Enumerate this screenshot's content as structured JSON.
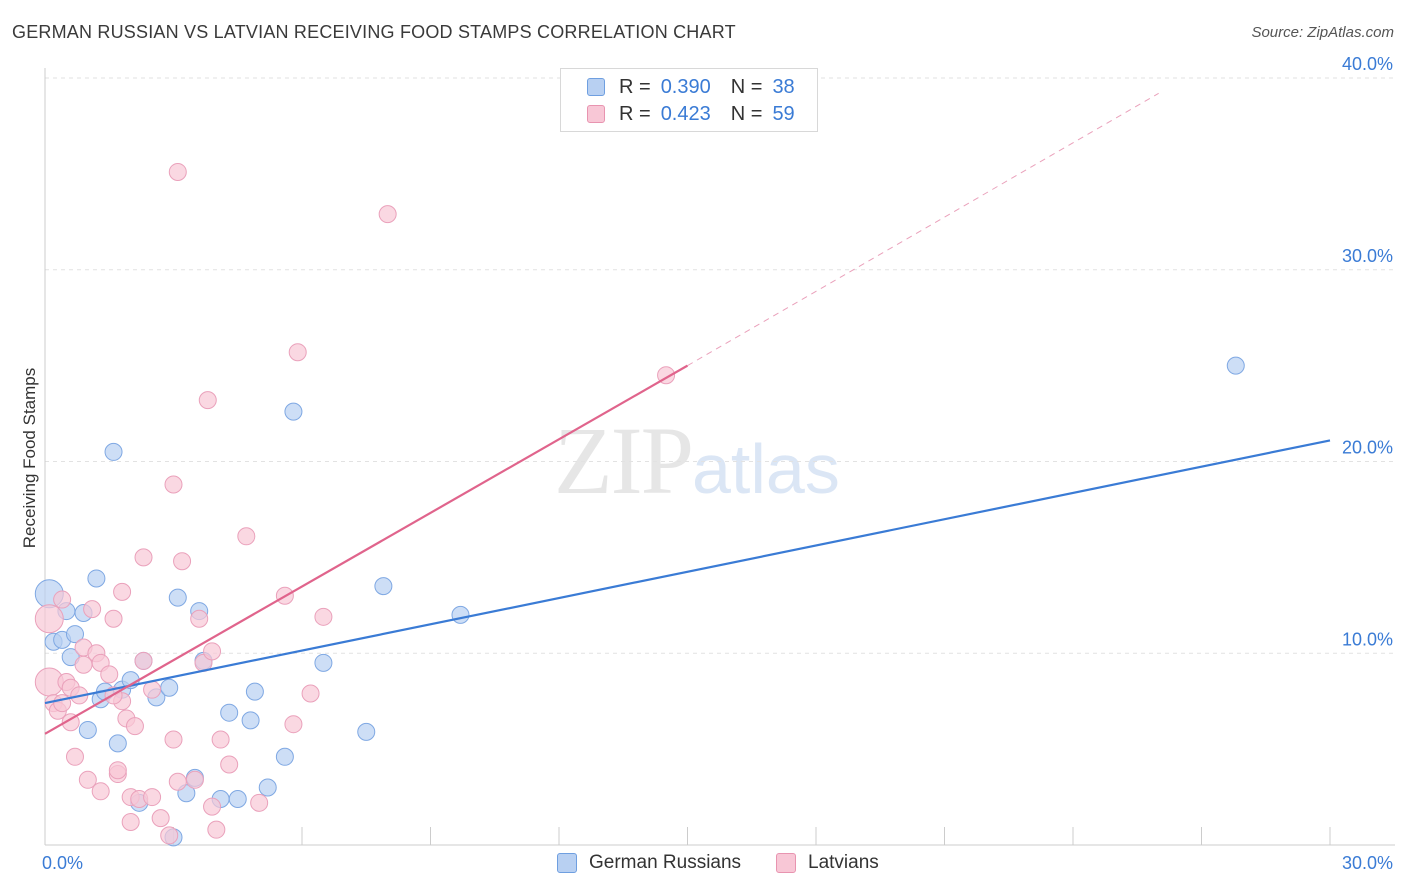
{
  "title": "GERMAN RUSSIAN VS LATVIAN RECEIVING FOOD STAMPS CORRELATION CHART",
  "source": "Source: ZipAtlas.com",
  "watermark": {
    "zip": "ZIP",
    "atlas": "atlas"
  },
  "legend": {
    "r_label": "R =",
    "n_label": "N =",
    "rows": [
      {
        "r": "0.390",
        "n": "38",
        "fill": "#b8d0f2",
        "stroke": "#6f9fe0"
      },
      {
        "r": "0.423",
        "n": "59",
        "fill": "#f8c7d6",
        "stroke": "#e894b0"
      }
    ]
  },
  "bottom_legend": [
    {
      "label": "German Russians",
      "fill": "#b8d0f2",
      "stroke": "#6f9fe0"
    },
    {
      "label": "Latvians",
      "fill": "#f8c7d6",
      "stroke": "#e894b0"
    }
  ],
  "chart_data": {
    "type": "scatter",
    "ylabel": "Receiving Food Stamps",
    "xlabel": "",
    "xlim": [
      0,
      30
    ],
    "ylim": [
      0,
      40
    ],
    "x_tick_labels": [
      {
        "value": 0,
        "label": "0.0%"
      },
      {
        "value": 30,
        "label": "30.0%"
      }
    ],
    "y_tick_labels": [
      {
        "value": 10,
        "label": "10.0%"
      },
      {
        "value": 20,
        "label": "20.0%"
      },
      {
        "value": 30,
        "label": "30.0%"
      },
      {
        "value": 40,
        "label": "40.0%"
      }
    ],
    "grid": "horizontal dashed",
    "series": [
      {
        "name": "German Russians",
        "color": "#3a7bd5",
        "fill": "#b8d0f2",
        "trend": {
          "x": [
            0,
            30
          ],
          "y": [
            7.4,
            21.1
          ]
        },
        "points": [
          [
            0.1,
            13.1
          ],
          [
            0.2,
            10.6
          ],
          [
            0.4,
            10.7
          ],
          [
            0.5,
            12.2
          ],
          [
            0.6,
            9.8
          ],
          [
            0.7,
            11.0
          ],
          [
            0.9,
            12.1
          ],
          [
            1.0,
            6.0
          ],
          [
            1.2,
            13.9
          ],
          [
            1.3,
            7.6
          ],
          [
            1.4,
            8.0
          ],
          [
            1.6,
            20.5
          ],
          [
            1.7,
            5.3
          ],
          [
            1.8,
            8.1
          ],
          [
            2.0,
            8.6
          ],
          [
            2.2,
            2.2
          ],
          [
            2.3,
            9.6
          ],
          [
            2.6,
            7.7
          ],
          [
            2.9,
            8.2
          ],
          [
            3.0,
            0.4
          ],
          [
            3.1,
            12.9
          ],
          [
            3.3,
            2.7
          ],
          [
            3.5,
            3.5
          ],
          [
            3.6,
            12.2
          ],
          [
            3.7,
            9.6
          ],
          [
            4.1,
            2.4
          ],
          [
            4.3,
            6.9
          ],
          [
            4.5,
            2.4
          ],
          [
            4.8,
            6.5
          ],
          [
            4.9,
            8.0
          ],
          [
            5.2,
            3.0
          ],
          [
            5.6,
            4.6
          ],
          [
            5.8,
            22.6
          ],
          [
            6.5,
            9.5
          ],
          [
            7.5,
            5.9
          ],
          [
            7.9,
            13.5
          ],
          [
            9.7,
            12.0
          ],
          [
            27.8,
            25.0
          ]
        ]
      },
      {
        "name": "Latvians",
        "color": "#e0648c",
        "fill": "#f8c7d6",
        "trend": {
          "x": [
            0,
            15
          ],
          "y": [
            5.8,
            25.0
          ]
        },
        "trend_extension": {
          "x": [
            15,
            26
          ],
          "y": [
            25.0,
            39.2
          ]
        },
        "points": [
          [
            0.1,
            8.5
          ],
          [
            0.1,
            11.8
          ],
          [
            0.2,
            7.4
          ],
          [
            0.3,
            7.0
          ],
          [
            0.4,
            7.4
          ],
          [
            0.5,
            8.5
          ],
          [
            0.6,
            6.4
          ],
          [
            0.6,
            8.2
          ],
          [
            0.7,
            4.6
          ],
          [
            0.8,
            7.8
          ],
          [
            0.9,
            10.3
          ],
          [
            0.9,
            9.4
          ],
          [
            1.0,
            3.4
          ],
          [
            1.1,
            12.3
          ],
          [
            1.2,
            10.0
          ],
          [
            1.3,
            2.8
          ],
          [
            1.3,
            9.5
          ],
          [
            1.5,
            8.9
          ],
          [
            1.6,
            11.8
          ],
          [
            1.7,
            3.7
          ],
          [
            1.7,
            3.9
          ],
          [
            1.8,
            7.5
          ],
          [
            1.8,
            13.2
          ],
          [
            1.9,
            6.6
          ],
          [
            2.0,
            1.2
          ],
          [
            2.0,
            2.5
          ],
          [
            2.1,
            6.2
          ],
          [
            2.2,
            2.4
          ],
          [
            2.3,
            9.6
          ],
          [
            2.3,
            15.0
          ],
          [
            2.5,
            2.5
          ],
          [
            2.5,
            8.1
          ],
          [
            2.7,
            1.4
          ],
          [
            2.9,
            0.5
          ],
          [
            3.0,
            5.5
          ],
          [
            3.0,
            18.8
          ],
          [
            3.1,
            3.3
          ],
          [
            3.1,
            35.1
          ],
          [
            3.2,
            14.8
          ],
          [
            3.5,
            3.4
          ],
          [
            3.6,
            11.8
          ],
          [
            3.7,
            9.5
          ],
          [
            3.8,
            23.2
          ],
          [
            3.9,
            10.1
          ],
          [
            4.0,
            0.8
          ],
          [
            4.1,
            5.5
          ],
          [
            4.3,
            4.2
          ],
          [
            4.7,
            16.1
          ],
          [
            5.0,
            2.2
          ],
          [
            5.6,
            13.0
          ],
          [
            5.8,
            6.3
          ],
          [
            5.9,
            25.7
          ],
          [
            6.2,
            7.9
          ],
          [
            6.5,
            11.9
          ],
          [
            8.0,
            32.9
          ],
          [
            14.5,
            24.5
          ],
          [
            0.4,
            12.8
          ],
          [
            1.6,
            7.8
          ],
          [
            3.9,
            2.0
          ]
        ]
      }
    ]
  }
}
